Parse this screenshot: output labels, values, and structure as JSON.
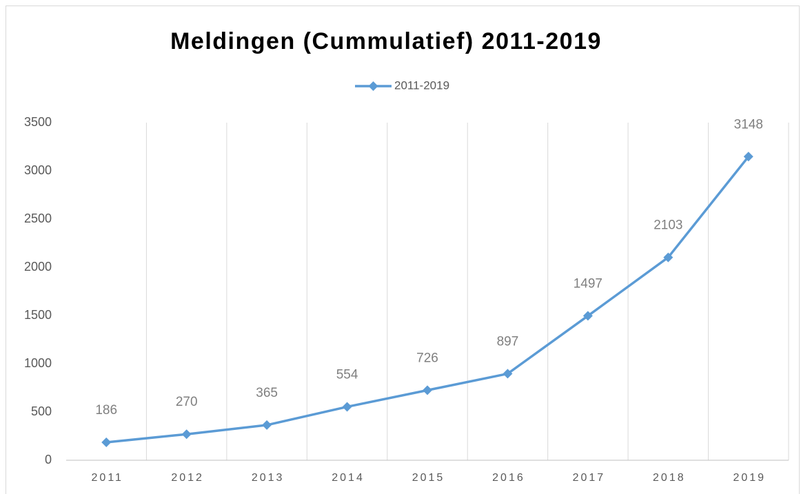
{
  "chart_data": {
    "type": "line",
    "title": "Meldingen (Cummulatief) 2011-2019",
    "categories": [
      "2011",
      "2012",
      "2013",
      "2014",
      "2015",
      "2016",
      "2017",
      "2018",
      "2019"
    ],
    "series": [
      {
        "name": "2011-2019",
        "color": "#5b9bd5",
        "values": [
          186,
          270,
          365,
          554,
          726,
          897,
          1497,
          2103,
          3148
        ]
      }
    ],
    "ylim": [
      0,
      3500
    ],
    "yticks": [
      0,
      500,
      1000,
      1500,
      2000,
      2500,
      3000,
      3500
    ],
    "category_grid": true,
    "legend": "top",
    "data_labels": true
  }
}
